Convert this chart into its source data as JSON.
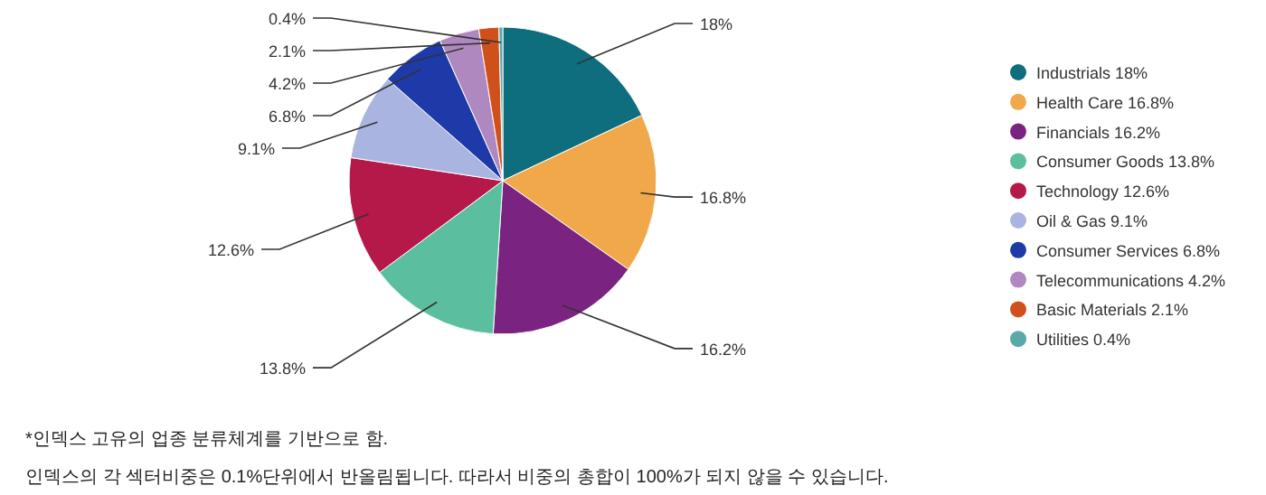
{
  "chart_data": {
    "type": "pie",
    "categories": [
      "Industrials",
      "Health Care",
      "Financials",
      "Consumer Goods",
      "Technology",
      "Oil & Gas",
      "Consumer Services",
      "Telecommunications",
      "Basic Materials",
      "Utilities"
    ],
    "values": [
      18,
      16.8,
      16.2,
      13.8,
      12.6,
      9.1,
      6.8,
      4.2,
      2.1,
      0.4
    ],
    "value_labels": [
      "18%",
      "16.8%",
      "16.2%",
      "13.8%",
      "12.6%",
      "9.1%",
      "6.8%",
      "4.2%",
      "2.1%",
      "0.4%"
    ],
    "colors": [
      "#0e6e7e",
      "#f0a84a",
      "#7b2380",
      "#5bbf9f",
      "#b5194a",
      "#aab4e0",
      "#1e3aa8",
      "#b088c0",
      "#d0501c",
      "#5aa9a9"
    ],
    "legend": "right",
    "annotations": [
      "*인덱스 고유의 업종 분류체계를 기반으로 함.",
      "인덱스의 각 섹터비중은 0.1%단위에서 반올림됩니다. 따라서 비중의 총합이 100%가 되지 않을 수 있습니다."
    ]
  }
}
